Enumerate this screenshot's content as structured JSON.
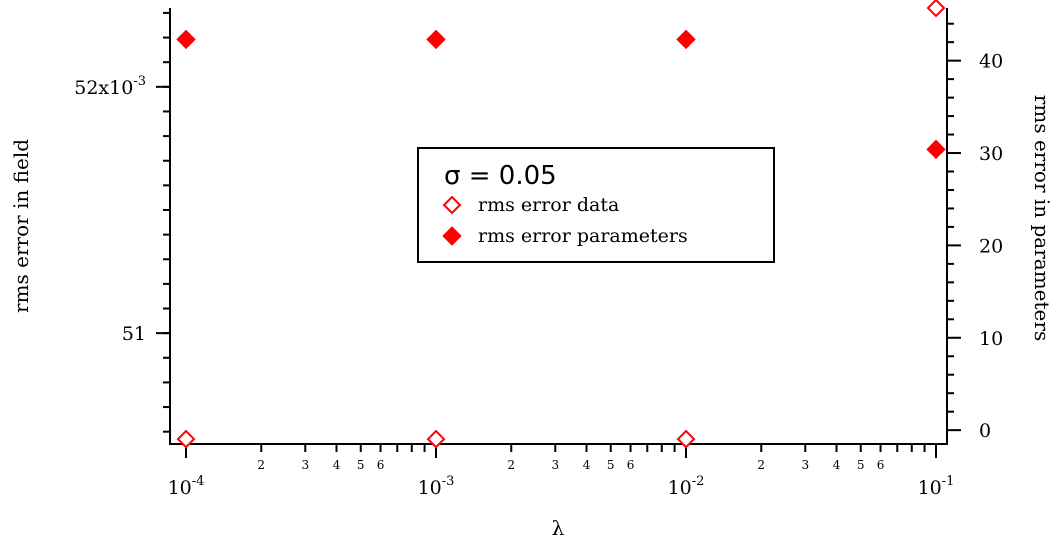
{
  "chart_data": {
    "type": "scatter",
    "xlabel": "λ",
    "ylabel_left": "rms error in field",
    "ylabel_right": "rms error in parameters",
    "x_scale": "log",
    "xlim": [
      0.0001,
      0.1
    ],
    "x_major_ticks": [
      {
        "value": 0.0001,
        "base": "10",
        "exp": "-4"
      },
      {
        "value": 0.001,
        "base": "10",
        "exp": "-3"
      },
      {
        "value": 0.01,
        "base": "10",
        "exp": "-2"
      },
      {
        "value": 0.1,
        "base": "10",
        "exp": "-1"
      }
    ],
    "x_minor_labels": [
      "2",
      "3",
      "4",
      "5",
      "6"
    ],
    "y_left_lim": [
      0.05055,
      0.05232
    ],
    "y_left_ticks": [
      {
        "value": 0.051,
        "label": "51",
        "exp": ""
      },
      {
        "value": 0.052,
        "label": "52x10",
        "exp": "-3"
      }
    ],
    "y_right_lim": [
      -1.5,
      45.7
    ],
    "y_right_ticks": [
      {
        "value": 0,
        "label": "0"
      },
      {
        "value": 10,
        "label": "10"
      },
      {
        "value": 20,
        "label": "20"
      },
      {
        "value": 30,
        "label": "30"
      },
      {
        "value": 40,
        "label": "40"
      }
    ],
    "legend": {
      "title": "σ = 0.05",
      "position": "center"
    },
    "series": [
      {
        "name": "rms error data",
        "axis": "left",
        "marker": "open-diamond",
        "color": "#ff0000",
        "x": [
          0.0001,
          0.001,
          0.01,
          0.1
        ],
        "y": [
          0.05057,
          0.05057,
          0.05057,
          0.05232
        ]
      },
      {
        "name": "rms error parameters",
        "axis": "right",
        "marker": "filled-diamond",
        "color": "#ff0000",
        "x": [
          0.0001,
          0.001,
          0.01,
          0.1
        ],
        "y": [
          42.3,
          42.3,
          42.3,
          30.4
        ]
      }
    ]
  }
}
